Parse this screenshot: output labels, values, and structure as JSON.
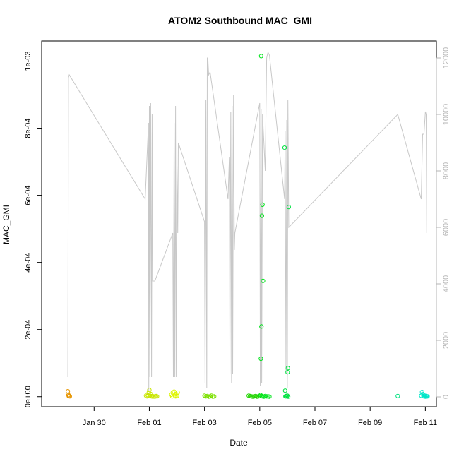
{
  "chart_data": {
    "type": "scatter",
    "title": "ATOM2 Southbound MAC_GMI",
    "xlabel": "Date",
    "ylabel": "MAC_GMI",
    "x_ticks": [
      "Jan 30",
      "Feb 01",
      "Feb 03",
      "Feb 05",
      "Feb 07",
      "Feb 09",
      "Feb 11"
    ],
    "x_tick_days": [
      0,
      2,
      4,
      6,
      8,
      10,
      12
    ],
    "xlim_days": [
      -1.9,
      12.4
    ],
    "ylim": [
      -3e-05,
      0.00106
    ],
    "y_ticks": [
      0,
      0.0002,
      0.0004,
      0.0006,
      0.0008,
      0.001
    ],
    "y_tick_labels": [
      "0e+00",
      "2e-04",
      "4e-04",
      "6e-04",
      "8e-04",
      "1e-03"
    ],
    "y2_ticks": [
      0,
      2000,
      4000,
      6000,
      8000,
      10000,
      12000
    ],
    "y2_tick_labels": [
      "0",
      "2000",
      "4000",
      "6000",
      "8000",
      "10000",
      "12000"
    ],
    "y2lim": [
      -350,
      12600
    ],
    "series": [
      {
        "color": "#E69500",
        "points": [
          [
            -0.95,
            1.6e-05
          ],
          [
            -0.93,
            5e-06
          ],
          [
            -0.92,
            2e-06
          ],
          [
            -0.9,
            3e-06
          ],
          [
            -0.88,
            1e-06
          ]
        ]
      },
      {
        "color": "#C8E600",
        "points": [
          [
            1.95,
            4e-06
          ],
          [
            1.98,
            1.2e-05
          ],
          [
            2.0,
            2e-05
          ],
          [
            2.02,
            3e-06
          ],
          [
            2.05,
            8e-06
          ],
          [
            2.08,
            1e-06
          ],
          [
            2.1,
            2e-06
          ],
          [
            2.13,
            0.0
          ],
          [
            2.16,
            1e-06
          ],
          [
            2.2,
            0.0
          ],
          [
            1.88,
            3e-06
          ],
          [
            1.92,
            1e-06
          ],
          [
            2.25,
            2e-06
          ],
          [
            2.28,
            1e-06
          ]
        ]
      },
      {
        "color": "#DDF500",
        "points": [
          [
            2.8,
            6e-06
          ],
          [
            2.85,
            1.2e-05
          ],
          [
            2.9,
            1.5e-05
          ],
          [
            2.93,
            3e-06
          ],
          [
            2.97,
            8e-06
          ],
          [
            3.0,
            2e-06
          ],
          [
            3.03,
            1.2e-05
          ],
          [
            2.83,
            1e-06
          ],
          [
            2.95,
            1e-06
          ]
        ]
      },
      {
        "color": "#7CE000",
        "points": [
          [
            4.0,
            3e-06
          ],
          [
            4.05,
            1e-06
          ],
          [
            4.1,
            2e-06
          ],
          [
            4.15,
            0.0
          ],
          [
            4.2,
            1e-06
          ],
          [
            4.25,
            3e-06
          ],
          [
            4.3,
            0.0
          ],
          [
            4.35,
            1e-06
          ]
        ]
      },
      {
        "color": "#22D400",
        "points": [
          [
            5.6,
            3e-06
          ],
          [
            5.65,
            2e-06
          ],
          [
            5.7,
            1e-06
          ],
          [
            5.75,
            0.0
          ],
          [
            5.8,
            1e-06
          ],
          [
            5.85,
            2e-06
          ],
          [
            5.9,
            0.0
          ],
          [
            5.95,
            1e-06
          ],
          [
            6.0,
            2e-06
          ]
        ]
      },
      {
        "color": "#00E51C",
        "points": [
          [
            6.05,
            0.001015
          ],
          [
            6.1,
            0.000572
          ],
          [
            6.08,
            0.000539
          ],
          [
            6.12,
            0.000345
          ],
          [
            6.06,
            0.000209
          ],
          [
            6.04,
            0.000113
          ],
          [
            6.03,
            5e-06
          ],
          [
            6.07,
            2e-06
          ],
          [
            6.1,
            1e-06
          ],
          [
            6.15,
            0.0
          ],
          [
            6.2,
            2e-06
          ],
          [
            6.25,
            1e-06
          ],
          [
            6.3,
            1e-06
          ],
          [
            6.35,
            0.0
          ]
        ]
      },
      {
        "color": "#00E040",
        "points": [
          [
            6.9,
            0.000742
          ],
          [
            6.92,
            1.8e-05
          ],
          [
            7.05,
            0.000565
          ],
          [
            7.02,
            8.5e-05
          ],
          [
            7.01,
            7.3e-05
          ],
          [
            6.95,
            2e-06
          ],
          [
            6.98,
            1e-06
          ],
          [
            7.0,
            3e-06
          ],
          [
            6.93,
            1e-06
          ],
          [
            7.03,
            0.0
          ]
        ]
      },
      {
        "color": "#00E07E",
        "points": [
          [
            11.0,
            2e-06
          ]
        ]
      },
      {
        "color": "#00E6C8",
        "points": [
          [
            11.85,
            3e-06
          ],
          [
            11.88,
            1.4e-05
          ],
          [
            11.9,
            8e-06
          ],
          [
            11.93,
            2e-06
          ],
          [
            11.95,
            1e-06
          ],
          [
            11.98,
            3e-06
          ],
          [
            12.0,
            0.0
          ],
          [
            12.03,
            2e-06
          ],
          [
            12.05,
            1e-06
          ],
          [
            12.08,
            1e-06
          ]
        ]
      }
    ],
    "secondary_line": {
      "color": "#c8c8c8",
      "axis": "right",
      "points": [
        [
          -0.95,
          700
        ],
        [
          -0.93,
          11300
        ],
        [
          -0.9,
          11400
        ],
        [
          1.85,
          7000
        ],
        [
          1.97,
          9700
        ],
        [
          1.98,
          200
        ],
        [
          2.0,
          10300
        ],
        [
          2.02,
          700
        ],
        [
          2.05,
          10400
        ],
        [
          2.08,
          700
        ],
        [
          2.1,
          10000
        ],
        [
          2.12,
          4100
        ],
        [
          2.2,
          4100
        ],
        [
          2.85,
          5800
        ],
        [
          2.87,
          700
        ],
        [
          2.9,
          9700
        ],
        [
          2.92,
          700
        ],
        [
          2.95,
          10300
        ],
        [
          2.97,
          700
        ],
        [
          3.0,
          8200
        ],
        [
          3.03,
          5800
        ],
        [
          3.05,
          9000
        ],
        [
          4.0,
          6200
        ],
        [
          4.02,
          500
        ],
        [
          4.05,
          10500
        ],
        [
          4.08,
          300
        ],
        [
          4.1,
          12000
        ],
        [
          4.12,
          12000
        ],
        [
          4.15,
          11400
        ],
        [
          4.2,
          11500
        ],
        [
          4.85,
          7000
        ],
        [
          4.9,
          8500
        ],
        [
          4.92,
          800
        ],
        [
          4.95,
          10100
        ],
        [
          4.98,
          500
        ],
        [
          5.0,
          10300
        ],
        [
          5.02,
          800
        ],
        [
          5.05,
          10700
        ],
        [
          5.08,
          5200
        ],
        [
          5.1,
          5800
        ],
        [
          6.0,
          10400
        ],
        [
          6.02,
          400
        ],
        [
          6.05,
          10200
        ],
        [
          6.07,
          500
        ],
        [
          6.1,
          10000
        ],
        [
          6.15,
          9000
        ],
        [
          6.2,
          8000
        ],
        [
          6.25,
          12000
        ],
        [
          6.3,
          12200
        ],
        [
          6.35,
          12100
        ],
        [
          6.9,
          7000
        ],
        [
          6.92,
          9400
        ],
        [
          6.95,
          800
        ],
        [
          6.98,
          9800
        ],
        [
          7.0,
          300
        ],
        [
          7.02,
          10500
        ],
        [
          7.05,
          6000
        ],
        [
          11.0,
          10000
        ],
        [
          11.85,
          7000
        ],
        [
          11.9,
          9300
        ],
        [
          11.95,
          9300
        ],
        [
          12.0,
          10100
        ],
        [
          12.03,
          10000
        ],
        [
          12.05,
          5800
        ]
      ]
    }
  }
}
